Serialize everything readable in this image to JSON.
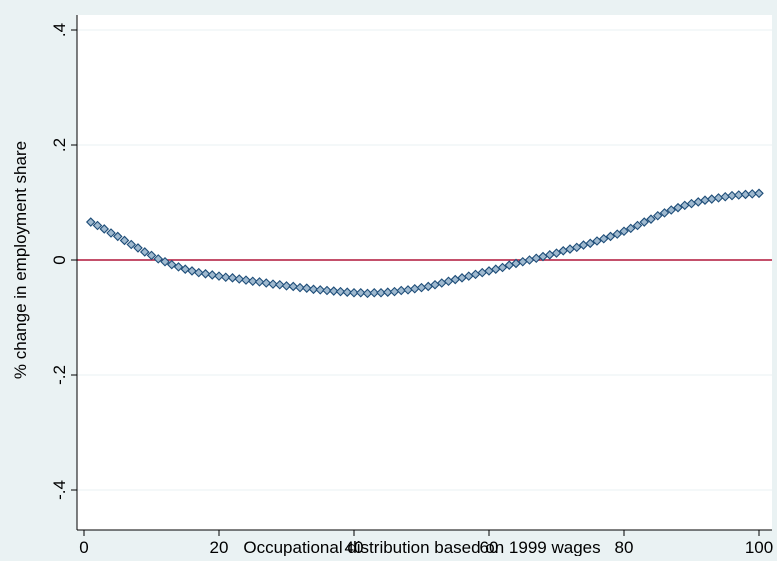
{
  "chart_data": {
    "type": "scatter",
    "title": "",
    "xlabel": "Occupational distribution based on 1999 wages",
    "ylabel": "% change in employment share",
    "xlim": [
      0,
      100
    ],
    "ylim": [
      -0.4,
      0.4
    ],
    "x_ticks": [
      0,
      20,
      40,
      60,
      80,
      100
    ],
    "x_tick_labels": [
      "0",
      "20",
      "40",
      "60",
      "80",
      "100"
    ],
    "y_ticks": [
      -0.4,
      -0.2,
      0,
      0.2,
      0.4
    ],
    "y_tick_labels": [
      "-.4",
      "-.2",
      "0",
      ".2",
      ".4"
    ],
    "grid": "horizontal",
    "reference_line": {
      "y": 0,
      "color": "#b0173a"
    },
    "marker_style": "hollow-diamond",
    "colors": {
      "marker": "#1f4e79",
      "plot_background": "#ffffff",
      "outer_background": "#eaf2f3",
      "gridline": "#eaf2f3"
    },
    "series": [
      {
        "x": [
          1,
          2,
          3,
          4,
          5,
          6,
          7,
          8,
          9,
          10,
          11,
          12,
          13,
          14,
          15,
          16,
          17,
          18,
          19,
          20,
          21,
          22,
          23,
          24,
          25,
          26,
          27,
          28,
          29,
          30,
          31,
          32,
          33,
          34,
          35,
          36,
          37,
          38,
          39,
          40,
          41,
          42,
          43,
          44,
          45,
          46,
          47,
          48,
          49,
          50,
          51,
          52,
          53,
          54,
          55,
          56,
          57,
          58,
          59,
          60,
          61,
          62,
          63,
          64,
          65,
          66,
          67,
          68,
          69,
          70,
          71,
          72,
          73,
          74,
          75,
          76,
          77,
          78,
          79,
          80,
          81,
          82,
          83,
          84,
          85,
          86,
          87,
          88,
          89,
          90,
          91,
          92,
          93,
          94,
          95,
          96,
          97,
          98,
          99,
          100
        ],
        "y": [
          0.066,
          0.06,
          0.054,
          0.047,
          0.041,
          0.034,
          0.027,
          0.021,
          0.014,
          0.008,
          0.002,
          -0.003,
          -0.008,
          -0.012,
          -0.016,
          -0.019,
          -0.022,
          -0.024,
          -0.026,
          -0.028,
          -0.03,
          -0.031,
          -0.033,
          -0.035,
          -0.037,
          -0.038,
          -0.04,
          -0.042,
          -0.043,
          -0.045,
          -0.046,
          -0.048,
          -0.049,
          -0.051,
          -0.052,
          -0.053,
          -0.054,
          -0.055,
          -0.056,
          -0.057,
          -0.057,
          -0.058,
          -0.057,
          -0.057,
          -0.056,
          -0.055,
          -0.053,
          -0.052,
          -0.05,
          -0.048,
          -0.046,
          -0.043,
          -0.04,
          -0.037,
          -0.034,
          -0.031,
          -0.028,
          -0.025,
          -0.022,
          -0.019,
          -0.016,
          -0.013,
          -0.009,
          -0.006,
          -0.003,
          0.0,
          0.003,
          0.006,
          0.009,
          0.012,
          0.016,
          0.019,
          0.022,
          0.026,
          0.029,
          0.033,
          0.037,
          0.041,
          0.045,
          0.05,
          0.055,
          0.06,
          0.066,
          0.071,
          0.077,
          0.082,
          0.087,
          0.091,
          0.095,
          0.098,
          0.101,
          0.104,
          0.106,
          0.108,
          0.11,
          0.112,
          0.113,
          0.114,
          0.115,
          0.116
        ]
      }
    ]
  }
}
